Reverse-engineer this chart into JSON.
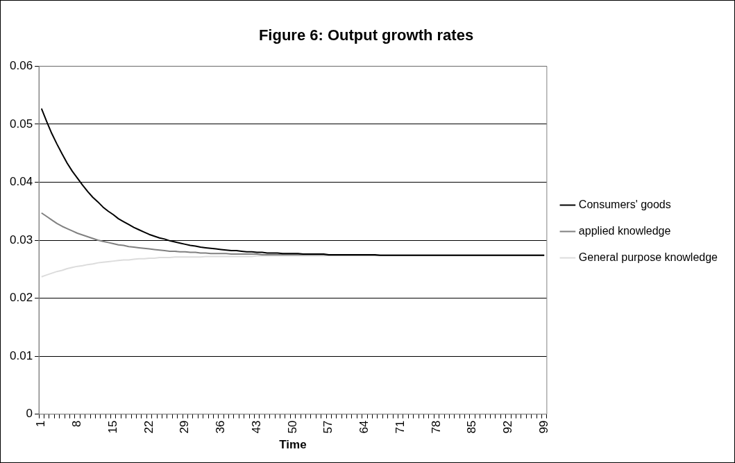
{
  "chart_data": {
    "type": "line",
    "title": "Figure 6: Output growth rates",
    "xlabel": "Time",
    "categories": [
      "1",
      null,
      null,
      null,
      null,
      null,
      null,
      "8",
      null,
      null,
      null,
      null,
      null,
      null,
      "15",
      null,
      null,
      null,
      null,
      null,
      null,
      "22",
      null,
      null,
      null,
      null,
      null,
      null,
      "29",
      null,
      null,
      null,
      null,
      null,
      null,
      "36",
      null,
      null,
      null,
      null,
      null,
      null,
      "43",
      null,
      null,
      null,
      null,
      null,
      null,
      "50",
      null,
      null,
      null,
      null,
      null,
      null,
      "57",
      null,
      null,
      null,
      null,
      null,
      null,
      "64",
      null,
      null,
      null,
      null,
      null,
      null,
      "71",
      null,
      null,
      null,
      null,
      null,
      null,
      "78",
      null,
      null,
      null,
      null,
      null,
      null,
      "85",
      null,
      null,
      null,
      null,
      null,
      null,
      "92",
      null,
      null,
      null,
      null,
      null,
      null,
      "99"
    ],
    "series": [
      {
        "name": "Consumers' goods",
        "color": "#000000",
        "values": [
          0.0527,
          0.0505,
          0.0484,
          0.0466,
          0.0449,
          0.0433,
          0.0419,
          0.0407,
          0.0395,
          0.0384,
          0.0374,
          0.0366,
          0.0357,
          0.035,
          0.0344,
          0.0337,
          0.0332,
          0.0327,
          0.0322,
          0.0318,
          0.0314,
          0.031,
          0.0307,
          0.0304,
          0.0302,
          0.0299,
          0.0297,
          0.0295,
          0.0293,
          0.0291,
          0.029,
          0.0288,
          0.0287,
          0.0286,
          0.0285,
          0.0284,
          0.0283,
          0.0282,
          0.0282,
          0.0281,
          0.028,
          0.028,
          0.0279,
          0.0279,
          0.0278,
          0.0278,
          0.0278,
          0.0277,
          0.0277,
          0.0277,
          0.0277,
          0.0276,
          0.0276,
          0.0276,
          0.0276,
          0.0276,
          0.0275,
          0.0275,
          0.0275,
          0.0275,
          0.0275,
          0.0275,
          0.0275,
          0.0275,
          0.0275,
          0.0275,
          0.0274,
          0.0274,
          0.0274,
          0.0274,
          0.0274,
          0.0274,
          0.0274,
          0.0274,
          0.0274,
          0.0274,
          0.0274,
          0.0274,
          0.0274,
          0.0274,
          0.0274,
          0.0274,
          0.0274,
          0.0274,
          0.0274,
          0.0274,
          0.0274,
          0.0274,
          0.0274,
          0.0274,
          0.0274,
          0.0274,
          0.0274,
          0.0274,
          0.0274,
          0.0274,
          0.0274,
          0.0274,
          0.0274
        ]
      },
      {
        "name": "applied knowledge",
        "color": "#808080",
        "values": [
          0.0347,
          0.0341,
          0.0335,
          0.0329,
          0.0324,
          0.032,
          0.0316,
          0.0312,
          0.0309,
          0.0306,
          0.0303,
          0.03,
          0.0298,
          0.0296,
          0.0294,
          0.0292,
          0.0291,
          0.0289,
          0.0288,
          0.0287,
          0.0286,
          0.0285,
          0.0284,
          0.0283,
          0.0282,
          0.0281,
          0.0281,
          0.028,
          0.028,
          0.0279,
          0.0279,
          0.0278,
          0.0278,
          0.0277,
          0.0277,
          0.0277,
          0.0277,
          0.0276,
          0.0276,
          0.0276,
          0.0276,
          0.0276,
          0.0276,
          0.0275,
          0.0275,
          0.0275,
          0.0275,
          0.0275,
          0.0275,
          0.0275,
          0.0275,
          0.0275,
          0.0275,
          0.0275,
          0.0275,
          0.0275,
          0.0274,
          0.0274,
          0.0274,
          0.0274,
          0.0274,
          0.0274,
          0.0274,
          0.0274,
          0.0274,
          0.0274,
          0.0274,
          0.0274,
          0.0274,
          0.0274,
          0.0274,
          0.0274,
          0.0274,
          0.0274,
          0.0274,
          0.0274,
          0.0274,
          0.0274,
          0.0274,
          0.0274,
          0.0274,
          0.0274,
          0.0274,
          0.0274,
          0.0274,
          0.0274,
          0.0274,
          0.0274,
          0.0274,
          0.0274,
          0.0274,
          0.0274,
          0.0274,
          0.0274,
          0.0274,
          0.0274,
          0.0274,
          0.0274,
          0.0274
        ]
      },
      {
        "name": "General purpose knowledge",
        "color": "#dcdcdc",
        "values": [
          0.0237,
          0.024,
          0.0243,
          0.0246,
          0.0248,
          0.0251,
          0.0253,
          0.0255,
          0.0256,
          0.0258,
          0.0259,
          0.0261,
          0.0262,
          0.0263,
          0.0264,
          0.0265,
          0.0266,
          0.0266,
          0.0267,
          0.0268,
          0.0268,
          0.0269,
          0.0269,
          0.027,
          0.027,
          0.027,
          0.0271,
          0.0271,
          0.0271,
          0.0271,
          0.0271,
          0.0271,
          0.0272,
          0.0272,
          0.0272,
          0.0272,
          0.0272,
          0.0272,
          0.0272,
          0.0272,
          0.0272,
          0.0272,
          0.0273,
          0.0273,
          0.0273,
          0.0273,
          0.0273,
          0.0273,
          0.0273,
          0.0273,
          0.0273,
          0.0273,
          0.0273,
          0.0273,
          0.0273,
          0.0273,
          0.0274,
          0.0274,
          0.0274,
          0.0274,
          0.0274,
          0.0274,
          0.0274,
          0.0274,
          0.0274,
          0.0274,
          0.0274,
          0.0274,
          0.0274,
          0.0274,
          0.0274,
          0.0274,
          0.0274,
          0.0274,
          0.0274,
          0.0274,
          0.0274,
          0.0274,
          0.0274,
          0.0274,
          0.0274,
          0.0274,
          0.0274,
          0.0274,
          0.0274,
          0.0274,
          0.0274,
          0.0274,
          0.0274,
          0.0274,
          0.0274,
          0.0274,
          0.0274,
          0.0274,
          0.0274,
          0.0274,
          0.0274,
          0.0274,
          0.0274
        ]
      }
    ],
    "ylim": [
      0,
      0.06
    ],
    "yticks": [
      0,
      0.01,
      0.02,
      0.03,
      0.04,
      0.05,
      0.06
    ],
    "grid": "y",
    "legend": "right",
    "marker": "none",
    "line_style": "solid"
  }
}
